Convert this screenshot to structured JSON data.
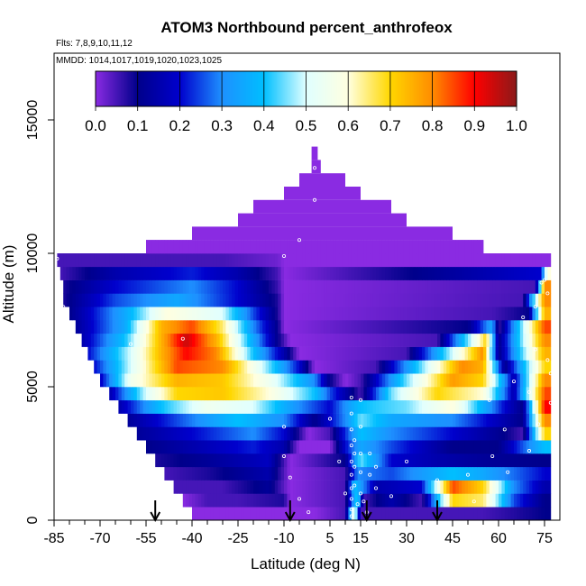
{
  "chart_data": {
    "type": "heatmap",
    "title": "ATOM3 Northbound percent_anthrofeox",
    "subtitle_flights": "Flts: 7,8,9,10,11,12",
    "subtitle_dates": "MMDD: 1014,1017,1019,1020,1023,1025",
    "xlabel": "Latitude (deg N)",
    "ylabel": "Altitude (m)",
    "xlim": [
      -85,
      80
    ],
    "ylim": [
      0,
      17500
    ],
    "x_ticks": [
      -85,
      -70,
      -55,
      -40,
      -25,
      -10,
      5,
      15,
      30,
      45,
      60,
      75
    ],
    "x_minor_ticks": [
      -80,
      -75,
      -65,
      -60,
      -50,
      -45,
      -35,
      -30,
      -20,
      -15,
      -5,
      0,
      10,
      20,
      25,
      35,
      40,
      50,
      55,
      65,
      70
    ],
    "y_ticks": [
      0,
      5000,
      10000,
      15000
    ],
    "colorbar": {
      "min": 0.0,
      "max": 1.0,
      "ticks": [
        "0.0",
        "0.1",
        "0.2",
        "0.3",
        "0.4",
        "0.5",
        "0.6",
        "0.7",
        "0.8",
        "0.9",
        "1.0"
      ],
      "colors": [
        "#8a2be2",
        "#00008b",
        "#0000cd",
        "#1e90ff",
        "#00bfff",
        "#e0ffff",
        "#ffffe0",
        "#ffd700",
        "#ff8c00",
        "#ff0000",
        "#8b1a1a"
      ]
    },
    "arrows_latitude": [
      -52,
      -8,
      17,
      40
    ],
    "cell_height_m": 500,
    "envelope": [
      {
        "x0": -55,
        "x1": 55,
        "top": 10000
      },
      {
        "x0": -40,
        "x1": 45,
        "top": 10500
      },
      {
        "x0": -25,
        "x1": 30,
        "top": 11000
      },
      {
        "x0": -20,
        "x1": 25,
        "top": 11500
      },
      {
        "x0": -10,
        "x1": 15,
        "top": 12000
      },
      {
        "x0": -5,
        "x1": 10,
        "top": 12500
      },
      {
        "x0": -1,
        "x1": 2,
        "top": 13000
      },
      {
        "x0": -1,
        "x1": 1,
        "top": 13500
      }
    ],
    "rows": [
      {
        "y": 0,
        "x0": -40,
        "x1": 77,
        "values": [
          [
            -40,
            0.0
          ],
          [
            -20,
            0.0
          ],
          [
            0,
            0.0
          ],
          [
            10,
            0.05
          ],
          [
            13,
            0.6
          ],
          [
            15,
            0.05
          ],
          [
            30,
            0.05
          ],
          [
            55,
            0.05
          ],
          [
            75,
            0.1
          ]
        ]
      },
      {
        "y": 500,
        "x0": -43,
        "x1": 77,
        "values": [
          [
            -43,
            0.0
          ],
          [
            -35,
            0.05
          ],
          [
            -25,
            0.05
          ],
          [
            -10,
            0.08
          ],
          [
            -8,
            0.0
          ],
          [
            10,
            0.05
          ],
          [
            14,
            0.45
          ],
          [
            16,
            0.05
          ],
          [
            25,
            0.15
          ],
          [
            35,
            0.05
          ],
          [
            45,
            0.7
          ],
          [
            55,
            0.65
          ],
          [
            65,
            0.25
          ],
          [
            75,
            0.1
          ]
        ]
      },
      {
        "y": 1000,
        "x0": -46,
        "x1": 77,
        "values": [
          [
            -46,
            0.05
          ],
          [
            -30,
            0.05
          ],
          [
            -15,
            0.12
          ],
          [
            -8,
            0.0
          ],
          [
            10,
            0.05
          ],
          [
            13,
            0.4
          ],
          [
            20,
            0.15
          ],
          [
            35,
            0.2
          ],
          [
            45,
            0.85
          ],
          [
            55,
            0.7
          ],
          [
            65,
            0.3
          ],
          [
            75,
            0.15
          ]
        ]
      },
      {
        "y": 1500,
        "x0": -49,
        "x1": 77,
        "values": [
          [
            -49,
            0.05
          ],
          [
            -35,
            0.08
          ],
          [
            -15,
            0.15
          ],
          [
            -8,
            0.0
          ],
          [
            10,
            0.05
          ],
          [
            14,
            0.3
          ],
          [
            25,
            0.25
          ],
          [
            45,
            0.4
          ],
          [
            55,
            0.35
          ],
          [
            75,
            0.2
          ]
        ]
      },
      {
        "y": 2000,
        "x0": -52,
        "x1": 77,
        "values": [
          [
            -52,
            0.08
          ],
          [
            -35,
            0.12
          ],
          [
            -15,
            0.18
          ],
          [
            -8,
            0.0
          ],
          [
            10,
            0.1
          ],
          [
            15,
            0.45
          ],
          [
            25,
            0.2
          ],
          [
            40,
            0.15
          ],
          [
            55,
            0.12
          ],
          [
            75,
            0.1
          ]
        ]
      },
      {
        "y": 2500,
        "x0": -55,
        "x1": 77,
        "values": [
          [
            -55,
            0.1
          ],
          [
            -40,
            0.15
          ],
          [
            -20,
            0.22
          ],
          [
            -10,
            0.15
          ],
          [
            -5,
            0.0
          ],
          [
            5,
            0.0
          ],
          [
            10,
            0.2
          ],
          [
            15,
            0.35
          ],
          [
            25,
            0.25
          ],
          [
            45,
            0.1
          ],
          [
            60,
            0.1
          ],
          [
            75,
            0.4
          ]
        ]
      },
      {
        "y": 3000,
        "x0": -58,
        "x1": 77,
        "values": [
          [
            -58,
            0.12
          ],
          [
            -40,
            0.2
          ],
          [
            -20,
            0.3
          ],
          [
            -10,
            0.2
          ],
          [
            -2,
            0.0
          ],
          [
            5,
            0.05
          ],
          [
            12,
            0.3
          ],
          [
            15,
            0.4
          ],
          [
            25,
            0.3
          ],
          [
            45,
            0.2
          ],
          [
            62,
            0.1
          ],
          [
            68,
            0.05
          ],
          [
            75,
            0.7
          ]
        ]
      },
      {
        "y": 3500,
        "x0": -61,
        "x1": 77,
        "values": [
          [
            -61,
            0.12
          ],
          [
            -45,
            0.25
          ],
          [
            -25,
            0.4
          ],
          [
            -10,
            0.3
          ],
          [
            0,
            0.1
          ],
          [
            10,
            0.3
          ],
          [
            15,
            0.45
          ],
          [
            25,
            0.35
          ],
          [
            45,
            0.3
          ],
          [
            62,
            0.15
          ],
          [
            68,
            0.1
          ],
          [
            75,
            0.8
          ]
        ]
      },
      {
        "y": 4000,
        "x0": -64,
        "x1": 77,
        "values": [
          [
            -64,
            0.15
          ],
          [
            -50,
            0.4
          ],
          [
            -35,
            0.55
          ],
          [
            -20,
            0.5
          ],
          [
            -5,
            0.3
          ],
          [
            5,
            0.2
          ],
          [
            12,
            0.35
          ],
          [
            15,
            0.4
          ],
          [
            30,
            0.45
          ],
          [
            45,
            0.6
          ],
          [
            62,
            0.2
          ],
          [
            68,
            0.1
          ],
          [
            75,
            0.9
          ]
        ]
      },
      {
        "y": 4500,
        "x0": -67,
        "x1": 77,
        "values": [
          [
            -67,
            0.15
          ],
          [
            -55,
            0.5
          ],
          [
            -45,
            0.7
          ],
          [
            -30,
            0.72
          ],
          [
            -15,
            0.6
          ],
          [
            0,
            0.4
          ],
          [
            5,
            0.25
          ],
          [
            10,
            0.15
          ],
          [
            15,
            0.05
          ],
          [
            25,
            0.45
          ],
          [
            40,
            0.7
          ],
          [
            55,
            0.6
          ],
          [
            65,
            0.15
          ],
          [
            75,
            0.85
          ]
        ]
      },
      {
        "y": 5000,
        "x0": -70,
        "x1": 77,
        "values": [
          [
            -70,
            0.18
          ],
          [
            -60,
            0.55
          ],
          [
            -45,
            0.75
          ],
          [
            -30,
            0.72
          ],
          [
            -15,
            0.55
          ],
          [
            0,
            0.3
          ],
          [
            5,
            0.1
          ],
          [
            10,
            0.0
          ],
          [
            15,
            0.05
          ],
          [
            30,
            0.45
          ],
          [
            45,
            0.78
          ],
          [
            55,
            0.7
          ],
          [
            65,
            0.15
          ],
          [
            75,
            0.8
          ]
        ]
      },
      {
        "y": 5500,
        "x0": -72,
        "x1": 77,
        "values": [
          [
            -72,
            0.2
          ],
          [
            -60,
            0.5
          ],
          [
            -45,
            0.85
          ],
          [
            -30,
            0.8
          ],
          [
            -15,
            0.45
          ],
          [
            -5,
            0.2
          ],
          [
            0,
            0.0
          ],
          [
            20,
            0.05
          ],
          [
            35,
            0.45
          ],
          [
            48,
            0.8
          ],
          [
            55,
            0.75
          ],
          [
            62,
            0.1
          ],
          [
            75,
            0.7
          ]
        ]
      },
      {
        "y": 6000,
        "x0": -74,
        "x1": 77,
        "values": [
          [
            -74,
            0.2
          ],
          [
            -60,
            0.5
          ],
          [
            -50,
            0.75
          ],
          [
            -42,
            0.9
          ],
          [
            -32,
            0.8
          ],
          [
            -20,
            0.4
          ],
          [
            -10,
            0.15
          ],
          [
            -5,
            0.0
          ],
          [
            30,
            0.05
          ],
          [
            45,
            0.5
          ],
          [
            55,
            0.8
          ],
          [
            60,
            0.1
          ],
          [
            75,
            0.75
          ]
        ]
      },
      {
        "y": 6500,
        "x0": -76,
        "x1": 77,
        "values": [
          [
            -76,
            0.15
          ],
          [
            -62,
            0.4
          ],
          [
            -50,
            0.75
          ],
          [
            -42,
            0.95
          ],
          [
            -32,
            0.75
          ],
          [
            -20,
            0.35
          ],
          [
            -12,
            0.1
          ],
          [
            -8,
            0.0
          ],
          [
            40,
            0.05
          ],
          [
            50,
            0.45
          ],
          [
            56,
            0.7
          ],
          [
            60,
            0.1
          ],
          [
            75,
            0.8
          ]
        ]
      },
      {
        "y": 7000,
        "x0": -78,
        "x1": 77,
        "values": [
          [
            -78,
            0.12
          ],
          [
            -62,
            0.35
          ],
          [
            -50,
            0.75
          ],
          [
            -40,
            0.85
          ],
          [
            -30,
            0.65
          ],
          [
            -20,
            0.3
          ],
          [
            -12,
            0.1
          ],
          [
            -10,
            0.0
          ],
          [
            50,
            0.1
          ],
          [
            58,
            0.35
          ],
          [
            60,
            0.05
          ],
          [
            75,
            0.85
          ]
        ]
      },
      {
        "y": 7500,
        "x0": -80,
        "x1": 77,
        "values": [
          [
            -80,
            0.1
          ],
          [
            -62,
            0.35
          ],
          [
            -48,
            0.6
          ],
          [
            -30,
            0.5
          ],
          [
            -20,
            0.25
          ],
          [
            -12,
            0.08
          ],
          [
            -10,
            0.0
          ],
          [
            58,
            0.05
          ],
          [
            70,
            0.1
          ],
          [
            75,
            0.75
          ]
        ]
      },
      {
        "y": 8000,
        "x0": -82,
        "x1": 77,
        "values": [
          [
            -82,
            0.08
          ],
          [
            -65,
            0.25
          ],
          [
            -45,
            0.35
          ],
          [
            -25,
            0.2
          ],
          [
            -12,
            0.08
          ],
          [
            -10,
            0.0
          ],
          [
            68,
            0.05
          ],
          [
            75,
            0.8
          ]
        ]
      },
      {
        "y": 8500,
        "x0": -82,
        "x1": 77,
        "values": [
          [
            -82,
            0.08
          ],
          [
            -65,
            0.2
          ],
          [
            -40,
            0.3
          ],
          [
            -25,
            0.2
          ],
          [
            -12,
            0.06
          ],
          [
            -10,
            0.0
          ],
          [
            72,
            0.05
          ],
          [
            75,
            0.8
          ]
        ]
      },
      {
        "y": 9000,
        "x0": -83,
        "x1": 77,
        "values": [
          [
            -83,
            0.05
          ],
          [
            -65,
            0.15
          ],
          [
            -40,
            0.22
          ],
          [
            -25,
            0.15
          ],
          [
            -12,
            0.05
          ],
          [
            -10,
            0.0
          ],
          [
            74,
            0.2
          ],
          [
            76,
            0.6
          ]
        ]
      },
      {
        "y": 9500,
        "x0": -84,
        "x1": 77,
        "values": [
          [
            -84,
            0.05
          ],
          [
            -60,
            0.05
          ],
          [
            -30,
            0.05
          ],
          [
            -12,
            0.02
          ],
          [
            -10,
            0.0
          ]
        ]
      },
      {
        "y": 10000,
        "x0": -55,
        "x1": 55,
        "values": [
          [
            -55,
            0.0
          ],
          [
            55,
            0.0
          ]
        ]
      }
    ],
    "observation_points": [
      [
        -84,
        9800
      ],
      [
        -82,
        8000
      ],
      [
        -80,
        6000
      ],
      [
        -60,
        6600
      ],
      [
        -43,
        6800
      ],
      [
        -10,
        9900
      ],
      [
        -5,
        10500
      ],
      [
        0,
        13200
      ],
      [
        0,
        12000
      ],
      [
        -10,
        3500
      ],
      [
        -10,
        2400
      ],
      [
        -8,
        1600
      ],
      [
        -5,
        800
      ],
      [
        -2,
        300
      ],
      [
        5,
        3800
      ],
      [
        8,
        2200
      ],
      [
        10,
        1000
      ],
      [
        12,
        4600
      ],
      [
        12,
        4000
      ],
      [
        12,
        3400
      ],
      [
        12,
        2800
      ],
      [
        12,
        2200
      ],
      [
        12,
        1700
      ],
      [
        12,
        1200
      ],
      [
        12,
        800
      ],
      [
        12,
        400
      ],
      [
        12,
        150
      ],
      [
        13,
        3000
      ],
      [
        13,
        2500
      ],
      [
        13,
        2000
      ],
      [
        13,
        1300
      ],
      [
        14,
        600
      ],
      [
        15,
        4500
      ],
      [
        15,
        3500
      ],
      [
        15,
        2500
      ],
      [
        15,
        1800
      ],
      [
        15,
        1000
      ],
      [
        16,
        700
      ],
      [
        17,
        300
      ],
      [
        18,
        1700
      ],
      [
        18,
        2500
      ],
      [
        20,
        2000
      ],
      [
        20,
        1200
      ],
      [
        25,
        900
      ],
      [
        30,
        2200
      ],
      [
        40,
        1500
      ],
      [
        50,
        1700
      ],
      [
        52,
        700
      ],
      [
        57,
        4500
      ],
      [
        58,
        2400
      ],
      [
        62,
        3400
      ],
      [
        65,
        5200
      ],
      [
        68,
        7600
      ],
      [
        70,
        4800
      ],
      [
        72,
        6400
      ],
      [
        72,
        8000
      ],
      [
        73,
        3600
      ],
      [
        74,
        8900
      ],
      [
        75,
        9000
      ],
      [
        76,
        8500
      ],
      [
        76,
        6000
      ],
      [
        77,
        5500
      ],
      [
        77,
        4400
      ],
      [
        63,
        1800
      ],
      [
        70,
        2600
      ]
    ]
  }
}
